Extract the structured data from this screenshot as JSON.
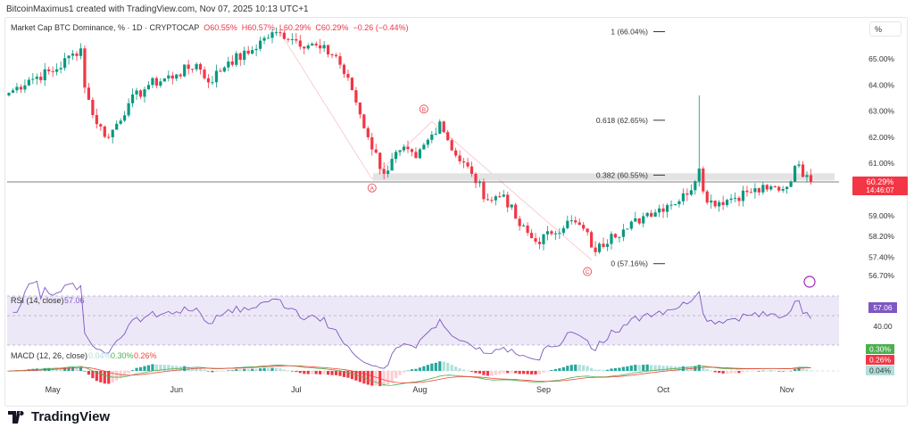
{
  "credit": "BitcoinMaximus1 created with TradingView.com, Nov 07, 2025 10:13 UTC+1",
  "legend": {
    "symbol": "Market Cap BTC Dominance, % · 1D · CRYPTOCAP",
    "o": "O60.55%",
    "h": "H60.57%",
    "l": "L60.29%",
    "c": "C60.29%",
    "chg": "−0.26 (−0.44%)"
  },
  "scale_unit": "%",
  "logo": "TradingView",
  "colors": {
    "up": "#089981",
    "down": "#f23645",
    "rsi": "#7e57c2",
    "macd": "#4caf50",
    "signal": "#f44336"
  },
  "chart_data": {
    "type": "candlestick",
    "title": "Market Cap BTC Dominance, % · 1D · CRYPTOCAP",
    "y_ticks": [
      "65.00%",
      "64.00%",
      "63.00%",
      "62.00%",
      "61.00%",
      "59.00%",
      "58.20%",
      "57.40%",
      "56.70%"
    ],
    "y_tick_values": [
      65,
      64,
      63,
      62,
      61,
      59,
      58.2,
      57.4,
      56.7
    ],
    "x_ticks": [
      "May",
      "Jun",
      "Jul",
      "Aug",
      "Sep",
      "Oct",
      "Nov"
    ],
    "x_tick_days": [
      11,
      42,
      72,
      103,
      134,
      164,
      195
    ],
    "ylim": [
      56.4,
      66.6
    ],
    "anchors_day_close": [
      [
        0,
        63.7
      ],
      [
        5,
        64.2
      ],
      [
        12,
        64.6
      ],
      [
        16,
        65.2
      ],
      [
        18,
        65.4
      ],
      [
        19,
        63.9
      ],
      [
        22,
        62.5
      ],
      [
        25,
        62.0
      ],
      [
        30,
        63.3
      ],
      [
        35,
        64.0
      ],
      [
        42,
        64.4
      ],
      [
        47,
        64.8
      ],
      [
        50,
        64.1
      ],
      [
        55,
        64.9
      ],
      [
        60,
        65.2
      ],
      [
        64,
        65.8
      ],
      [
        68,
        66.0
      ],
      [
        72,
        65.7
      ],
      [
        78,
        65.4
      ],
      [
        82,
        65.1
      ],
      [
        86,
        63.8
      ],
      [
        90,
        62.0
      ],
      [
        94,
        60.6
      ],
      [
        98,
        61.5
      ],
      [
        102,
        61.2
      ],
      [
        106,
        62.1
      ],
      [
        108,
        62.6
      ],
      [
        112,
        61.3
      ],
      [
        116,
        60.6
      ],
      [
        120,
        59.6
      ],
      [
        124,
        59.8
      ],
      [
        128,
        58.6
      ],
      [
        132,
        58.0
      ],
      [
        136,
        58.3
      ],
      [
        140,
        58.8
      ],
      [
        144,
        58.5
      ],
      [
        147,
        57.6
      ],
      [
        151,
        58.3
      ],
      [
        155,
        58.5
      ],
      [
        160,
        59.1
      ],
      [
        165,
        59.4
      ],
      [
        170,
        59.8
      ],
      [
        173,
        60.8
      ],
      [
        175,
        59.5
      ],
      [
        180,
        59.6
      ],
      [
        185,
        59.9
      ],
      [
        190,
        60.0
      ],
      [
        195,
        60.1
      ],
      [
        197,
        60.9
      ],
      [
        200,
        60.55
      ],
      [
        201,
        60.29
      ]
    ],
    "spike": {
      "day": 173,
      "high": 63.6
    },
    "last_price": {
      "value": "60.29%",
      "countdown": "14:46:07"
    },
    "fib": [
      {
        "label": "1 (66.04%)",
        "value": 66.04
      },
      {
        "label": "0.618 (62.65%)",
        "value": 62.65
      },
      {
        "label": "0.382 (60.55%)",
        "value": 60.55
      },
      {
        "label": "0 (57.16%)",
        "value": 57.16
      }
    ],
    "waves": [
      {
        "label": "A",
        "day": 91,
        "value": 60.4
      },
      {
        "label": "B",
        "day": 104,
        "value": 62.6
      },
      {
        "label": "C",
        "day": 145,
        "value": 57.2
      }
    ],
    "rsi": {
      "label": "RSI (14, close)",
      "value": "57.06",
      "ticks": [
        "40.00"
      ]
    },
    "macd": {
      "label": "MACD (12, 26, close)",
      "hist": "0.04%",
      "macd": "0.30%",
      "signal": "0.26%"
    }
  }
}
